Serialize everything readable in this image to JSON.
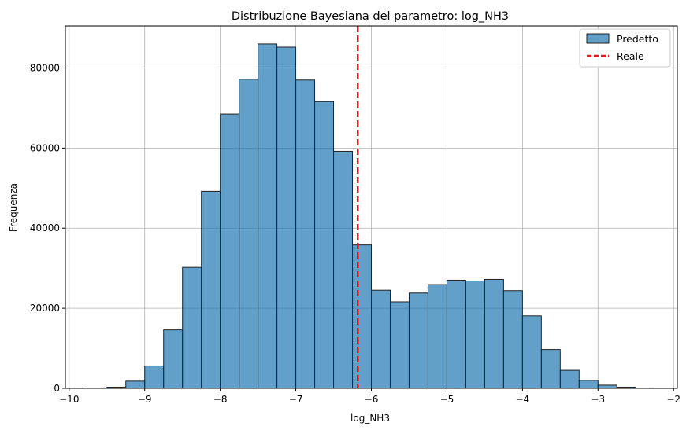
{
  "chart_data": {
    "type": "bar",
    "title": "Distribuzione Bayesiana del parametro: log_NH3",
    "xlabel": "log_NH3",
    "ylabel": "Frequenza",
    "xlim": [
      -10.05,
      -1.95
    ],
    "ylim": [
      0,
      90500
    ],
    "xticks": [
      -10,
      -9,
      -8,
      -7,
      -6,
      -5,
      -4,
      -3,
      -2
    ],
    "xtick_labels": [
      "−10",
      "−9",
      "−8",
      "−7",
      "−6",
      "−5",
      "−4",
      "−3",
      "−2"
    ],
    "yticks": [
      0,
      20000,
      40000,
      60000,
      80000
    ],
    "ytick_labels": [
      "0",
      "20000",
      "40000",
      "60000",
      "80000"
    ],
    "grid": true,
    "legend_position": "top-right",
    "bin_edges": [
      -9.75,
      -9.5,
      -9.25,
      -9.0,
      -8.75,
      -8.5,
      -8.25,
      -8.0,
      -7.75,
      -7.5,
      -7.25,
      -7.0,
      -6.75,
      -6.5,
      -6.25,
      -6.0,
      -5.75,
      -5.5,
      -5.25,
      -5.0,
      -4.75,
      -4.5,
      -4.25,
      -4.0,
      -3.75,
      -3.5,
      -3.25,
      -3.0,
      -2.75,
      -2.5,
      -2.25
    ],
    "series": [
      {
        "name": "Predetto",
        "kind": "histogram",
        "color": "#1f77b4",
        "values": [
          100,
          300,
          1800,
          5600,
          14600,
          30200,
          49200,
          68500,
          77200,
          86000,
          85200,
          77000,
          71600,
          59200,
          35800,
          24500,
          21600,
          23800,
          25900,
          27000,
          26800,
          27200,
          24400,
          18100,
          9700,
          4500,
          2000,
          800,
          300,
          100
        ]
      },
      {
        "name": "Reale",
        "kind": "vline",
        "color": "#e31a1c",
        "x": -6.18
      }
    ]
  }
}
